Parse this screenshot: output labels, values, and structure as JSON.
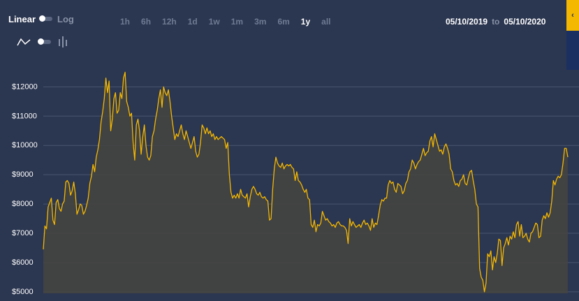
{
  "controls": {
    "scale_on_label": "Linear",
    "scale_off_label": "Log",
    "line_icon": "line-chart-icon",
    "bar_icon": "bar-chart-icon",
    "ranges": [
      "1h",
      "6h",
      "12h",
      "1d",
      "1w",
      "1m",
      "3m",
      "6m",
      "1y",
      "all"
    ],
    "active_range": "1y",
    "date_from": "05/10/2019",
    "date_to_word": "to",
    "date_to": "05/10/2020",
    "side_label": "‹"
  },
  "colors": {
    "background": "#2b3650",
    "line": "#f5b800",
    "area": "#45443f",
    "grid": "#4a5570",
    "text": "#ffffff",
    "muted": "#6f7b93"
  },
  "chart_data": {
    "type": "area",
    "title": "",
    "xlabel": "",
    "ylabel": "",
    "x_start": "05/10/2019",
    "x_end": "05/10/2020",
    "ylim": [
      4950,
      12700
    ],
    "yticks": [
      "$5000",
      "$6000",
      "$7000",
      "$8000",
      "$9000",
      "$10000",
      "$11000",
      "$12000"
    ],
    "ytick_values": [
      5000,
      6000,
      7000,
      8000,
      9000,
      10000,
      11000,
      12000
    ],
    "grid": true,
    "series": [
      {
        "values": [
          6450,
          7250,
          7150,
          7900,
          8050,
          8200,
          7450,
          7300,
          8050,
          8150,
          7850,
          7750,
          8000,
          8100,
          8750,
          8800,
          8700,
          8300,
          8450,
          8750,
          8350,
          7650,
          7800,
          8000,
          7950,
          7650,
          7750,
          7950,
          8200,
          8700,
          8950,
          9350,
          9100,
          9600,
          9850,
          10200,
          10800,
          11150,
          11600,
          12300,
          11800,
          12200,
          10500,
          10900,
          11600,
          11800,
          11100,
          11200,
          11800,
          11600,
          12300,
          12500,
          11500,
          11300,
          11000,
          11100,
          10100,
          9500,
          10700,
          10900,
          10500,
          9700,
          10300,
          10700,
          10000,
          9600,
          9500,
          9650,
          10300,
          10500,
          10900,
          11200,
          11600,
          11900,
          11300,
          12000,
          11800,
          11700,
          11900,
          11500,
          11000,
          10600,
          10200,
          10400,
          10300,
          10500,
          10700,
          10400,
          10200,
          10500,
          10300,
          10100,
          9900,
          10100,
          10300,
          9800,
          9600,
          9700,
          10100,
          10700,
          10600,
          10400,
          10600,
          10400,
          10500,
          10300,
          10400,
          10200,
          10300,
          10200,
          10250,
          10300,
          10250,
          10200,
          9900,
          10100,
          9000,
          8400,
          8200,
          8300,
          8200,
          8350,
          8200,
          8500,
          8300,
          8250,
          8200,
          8350,
          7900,
          8250,
          8500,
          8600,
          8500,
          8350,
          8300,
          8400,
          8250,
          8200,
          8250,
          8150,
          8100,
          7450,
          7500,
          8500,
          9200,
          9600,
          9400,
          9300,
          9250,
          9400,
          9200,
          9300,
          9350,
          9300,
          9350,
          9250,
          9200,
          8800,
          9100,
          8800,
          8750,
          8650,
          8500,
          8400,
          8500,
          8200,
          8150,
          7300,
          7200,
          7450,
          7050,
          7300,
          7250,
          7350,
          7750,
          7600,
          7450,
          7500,
          7400,
          7350,
          7250,
          7300,
          7200,
          7350,
          7400,
          7300,
          7250,
          7250,
          7200,
          7100,
          6650,
          7500,
          7250,
          7400,
          7300,
          7200,
          7250,
          7300,
          7200,
          7350,
          7450,
          7300,
          7350,
          7250,
          7100,
          7500,
          7200,
          7350,
          7300,
          7600,
          7950,
          8150,
          8100,
          8200,
          8200,
          8650,
          8800,
          8700,
          8750,
          8500,
          8400,
          8700,
          8650,
          8600,
          8350,
          8450,
          8700,
          8800,
          9100,
          9200,
          9500,
          9400,
          9200,
          9350,
          9450,
          9500,
          9700,
          9900,
          9650,
          9750,
          9800,
          10150,
          10300,
          9950,
          10400,
          10200,
          10000,
          9800,
          9850,
          9700,
          9950,
          10050,
          9900,
          9700,
          9200,
          9100,
          8800,
          8650,
          8700,
          8600,
          8800,
          8850,
          9000,
          8700,
          8650,
          8900,
          9100,
          9150,
          8800,
          8500,
          8000,
          7900,
          5800,
          5500,
          5400,
          5000,
          5300,
          6300,
          6200,
          6400,
          5750,
          6200,
          6000,
          6300,
          6800,
          6750,
          5900,
          6500,
          6650,
          6850,
          6600,
          6900,
          6800,
          7050,
          6850,
          7300,
          7400,
          6900,
          7300,
          6850,
          6900,
          7000,
          6800,
          6700,
          7000,
          7050,
          7200,
          7350,
          7300,
          6850,
          6900,
          7450,
          7600,
          7500,
          7700,
          7550,
          7700,
          8100,
          8800,
          8650,
          8850,
          8950,
          8900,
          9000,
          9400,
          9900,
          9900,
          9600
        ]
      }
    ]
  }
}
